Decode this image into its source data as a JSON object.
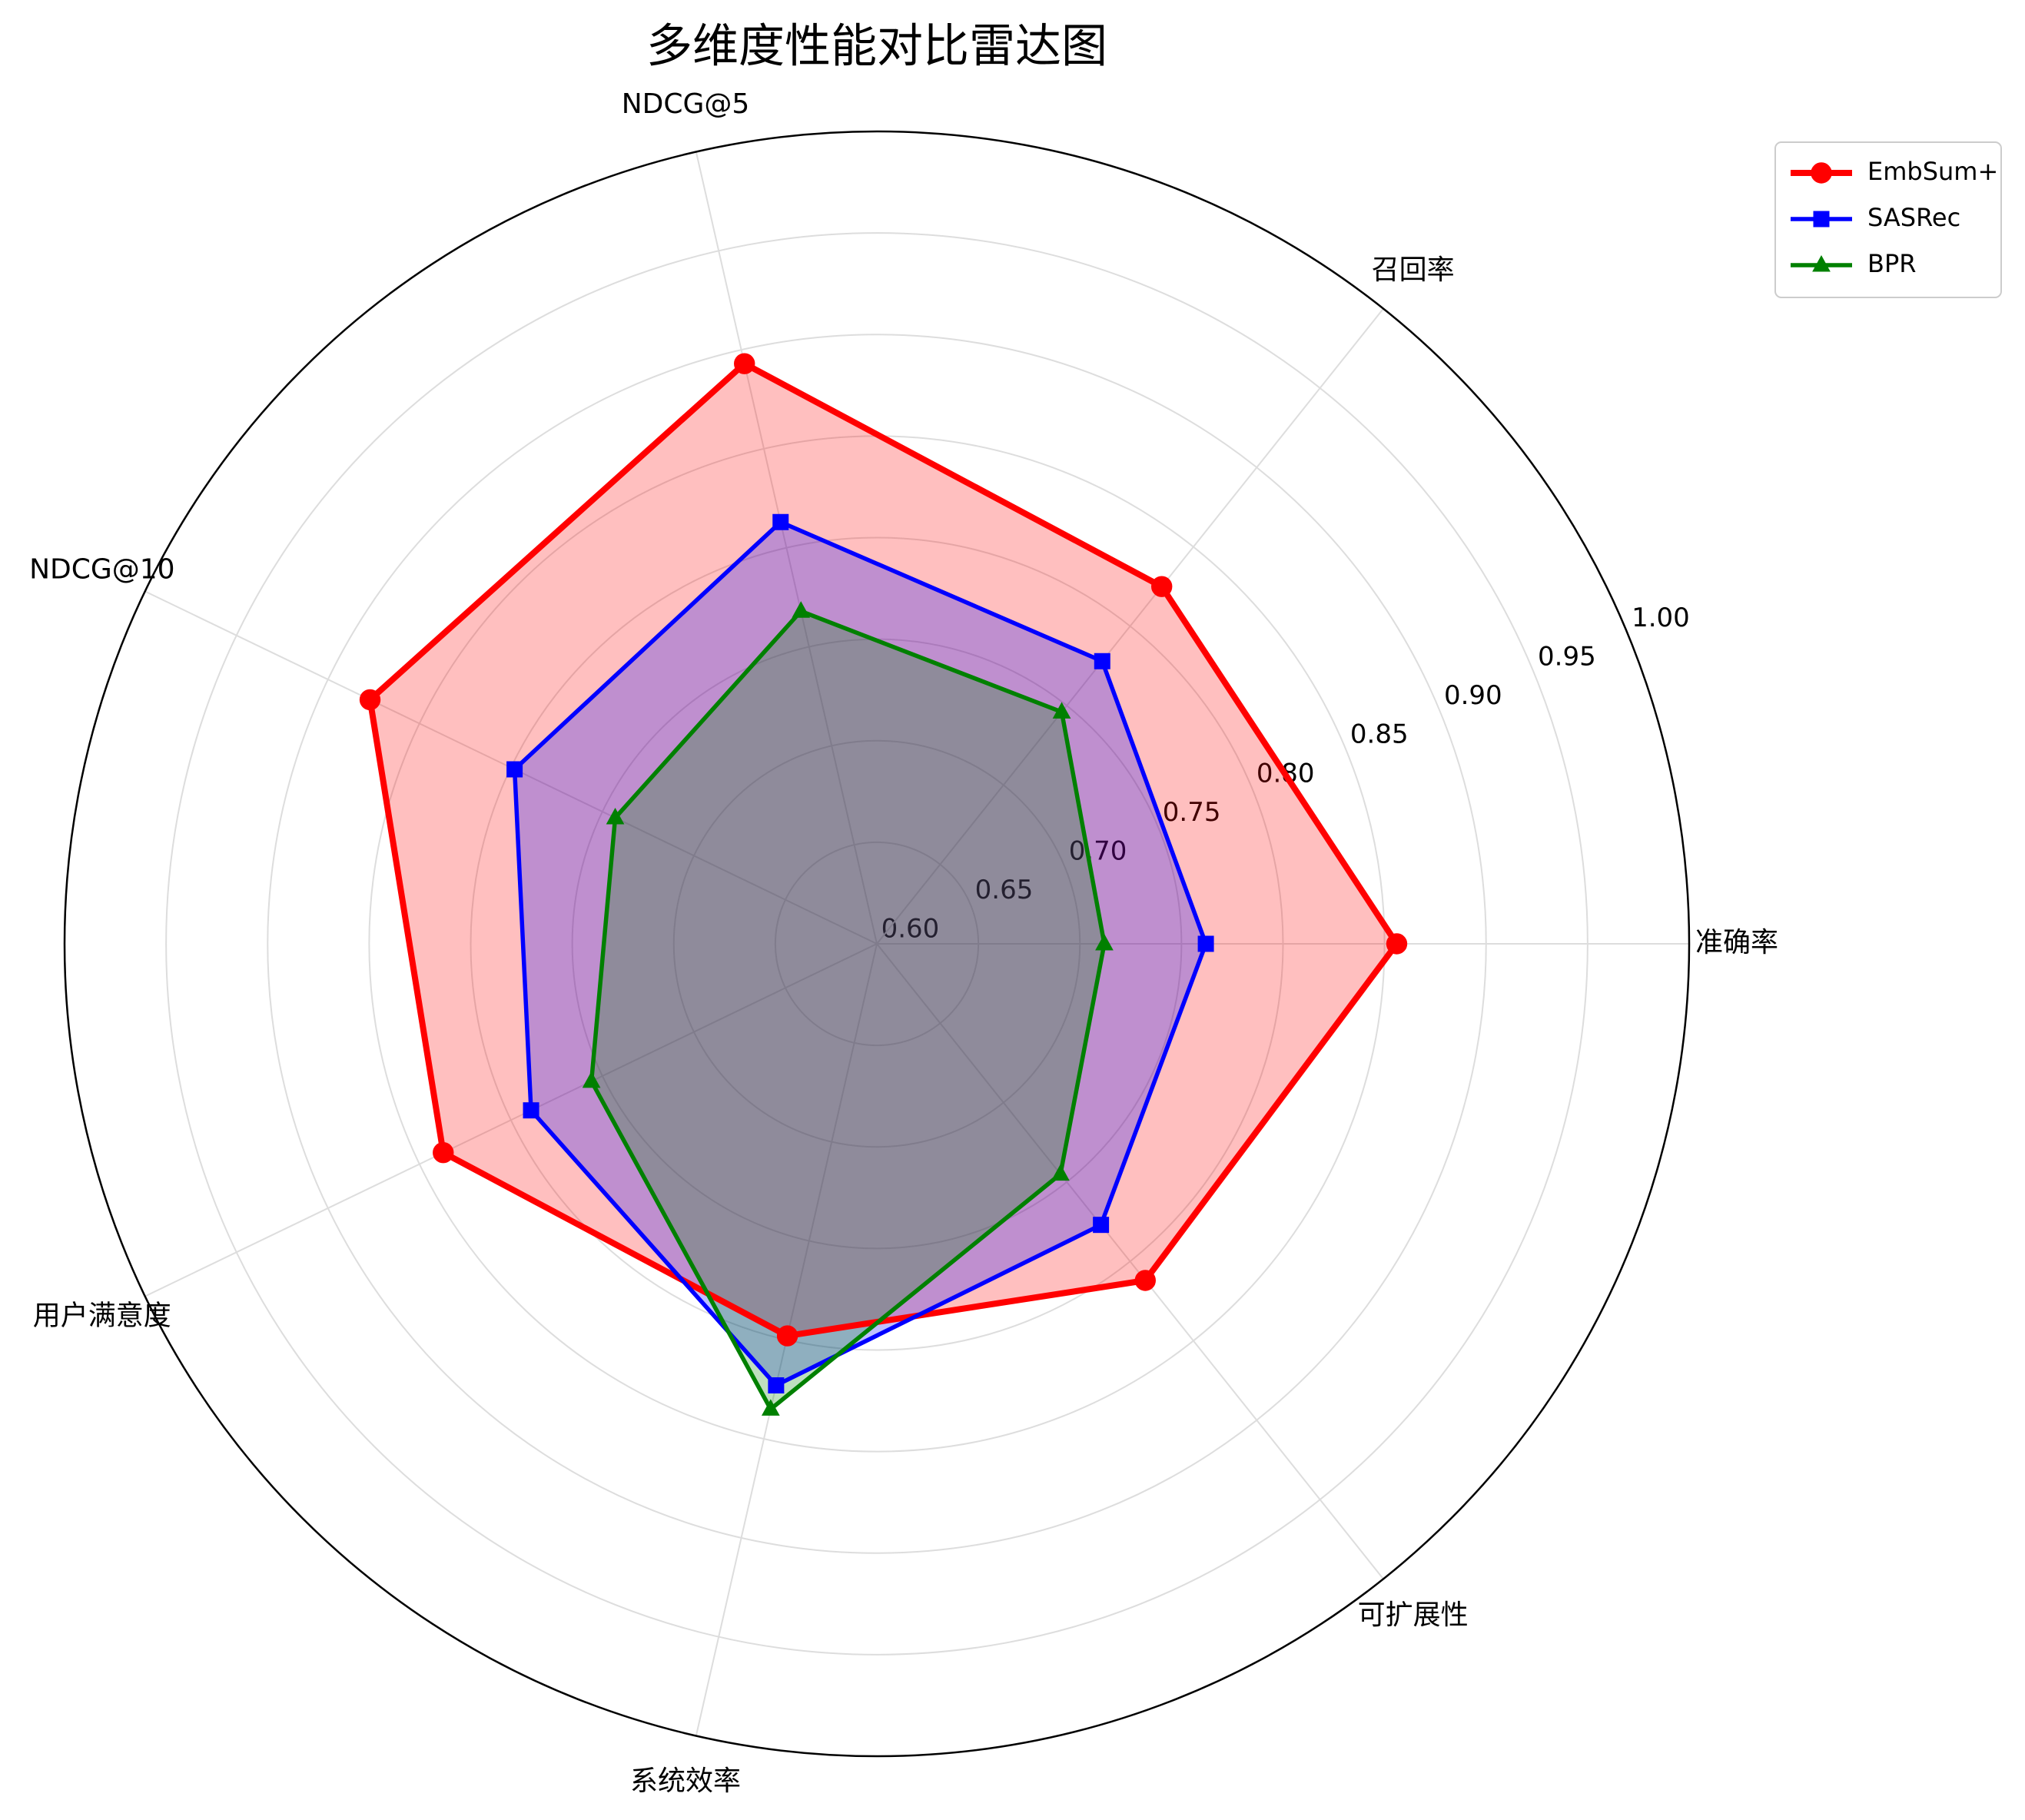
{
  "chart_data": {
    "type": "radar",
    "title": "多维度性能对比雷达图",
    "categories": [
      "准确率",
      "召回率",
      "NDCG@5",
      "NDCG@10",
      "用户满意度",
      "系统效率",
      "可扩展性"
    ],
    "series": [
      {
        "name": "EmbSum+",
        "color": "#ff0000",
        "marker": "circle",
        "values": [
          0.856,
          0.825,
          0.893,
          0.877,
          0.837,
          0.798,
          0.812
        ]
      },
      {
        "name": "SASRec",
        "color": "#0000ff",
        "marker": "square",
        "values": [
          0.762,
          0.778,
          0.813,
          0.798,
          0.789,
          0.823,
          0.777
        ]
      },
      {
        "name": "BPR",
        "color": "#008000",
        "marker": "triangle",
        "values": [
          0.712,
          0.746,
          0.768,
          0.743,
          0.756,
          0.835,
          0.745
        ]
      }
    ],
    "ylim": [
      0.6,
      1.0
    ],
    "yticks": [
      {
        "value": 0.6,
        "label": "0.60"
      },
      {
        "value": 0.65,
        "label": "0.65"
      },
      {
        "value": 0.7,
        "label": "0.70"
      },
      {
        "value": 0.75,
        "label": "0.75"
      },
      {
        "value": 0.8,
        "label": "0.80"
      },
      {
        "value": 0.85,
        "label": "0.85"
      },
      {
        "value": 0.9,
        "label": "0.90"
      },
      {
        "value": 0.95,
        "label": "0.95"
      },
      {
        "value": 1.0,
        "label": "1.00"
      }
    ],
    "grid": true,
    "legend": "upper right"
  }
}
